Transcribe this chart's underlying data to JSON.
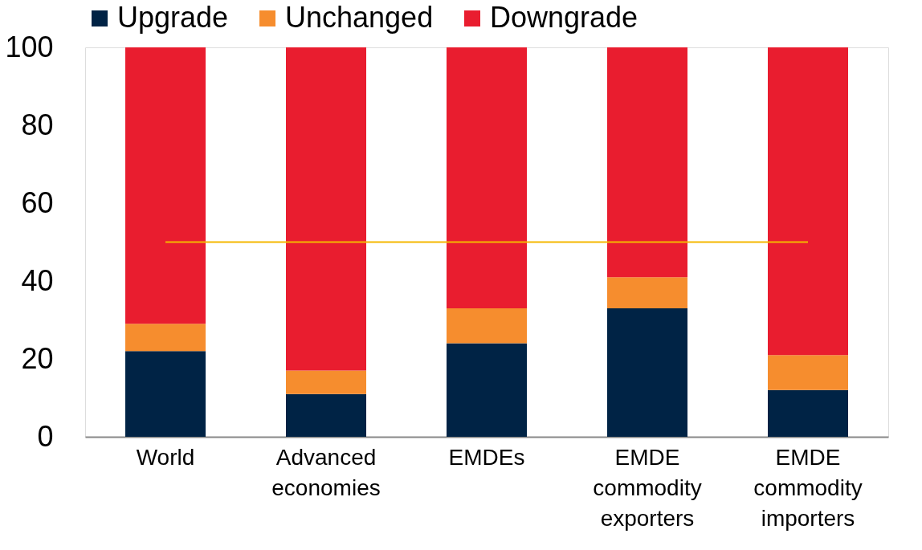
{
  "chart_data": {
    "type": "bar",
    "stacked": true,
    "categories": [
      "World",
      "Advanced economies",
      "EMDEs",
      "EMDE commodity exporters",
      "EMDE commodity importers"
    ],
    "series": [
      {
        "name": "Upgrade",
        "color": "#002345",
        "values": [
          22,
          11,
          24,
          33,
          12
        ]
      },
      {
        "name": "Unchanged",
        "color": "#f68d2e",
        "values": [
          7,
          6,
          9,
          8,
          9
        ]
      },
      {
        "name": "Downgrade",
        "color": "#e91d2f",
        "values": [
          71,
          83,
          67,
          59,
          79
        ]
      }
    ],
    "ylim": [
      0,
      100
    ],
    "yticks": [
      0,
      20,
      40,
      60,
      80,
      100
    ],
    "ref_lines": [
      {
        "axis": "y",
        "value": 50,
        "color": "#f5b800"
      }
    ],
    "grid": false,
    "legend": "top"
  }
}
